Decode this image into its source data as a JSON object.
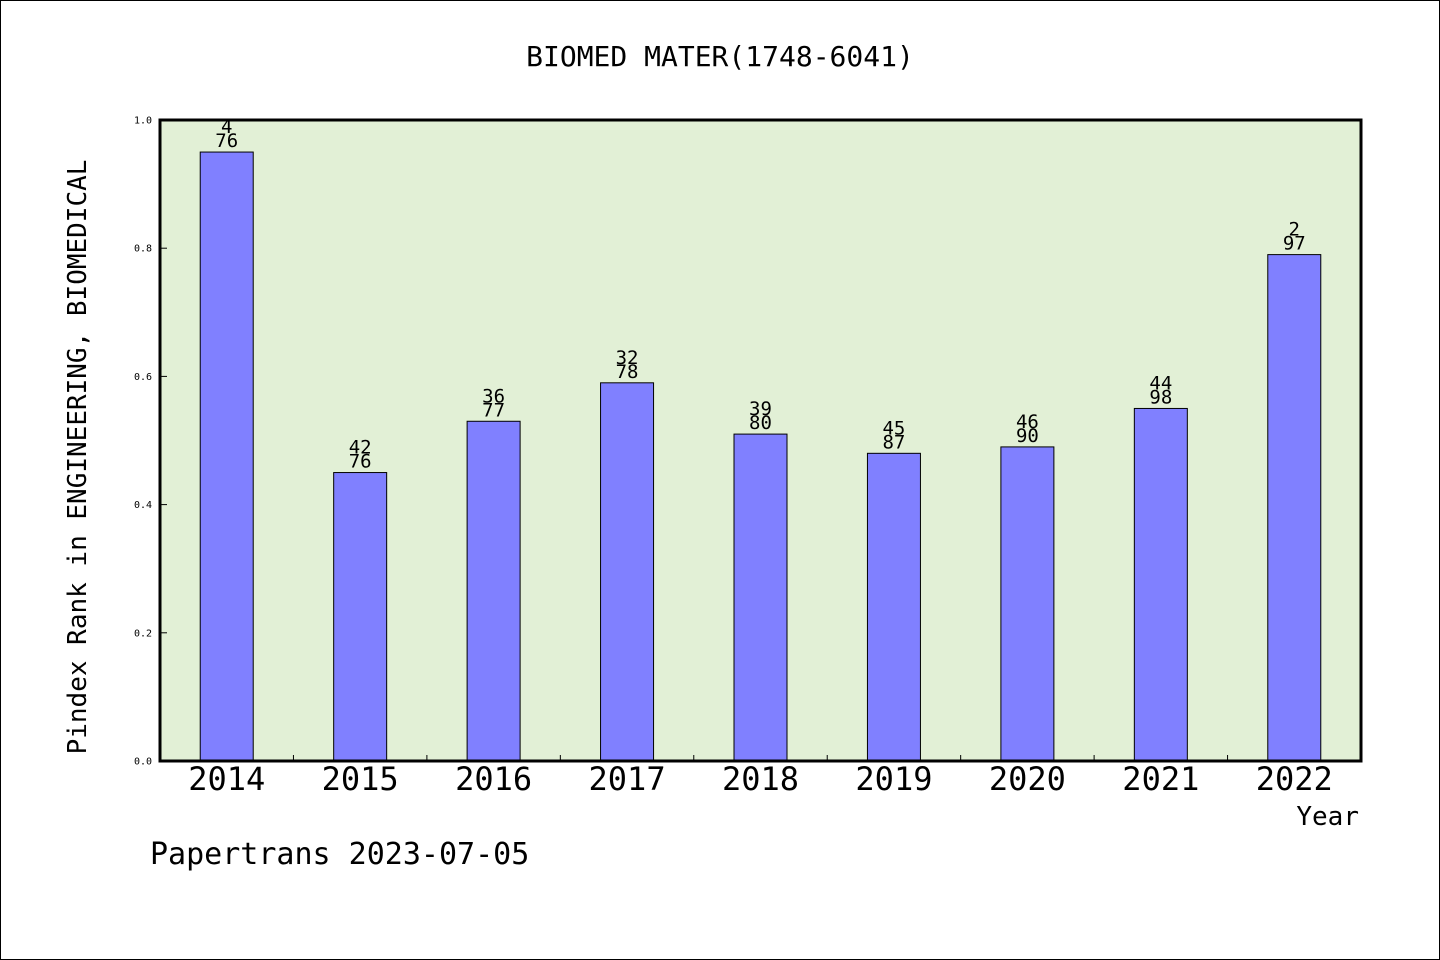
{
  "chart_data": {
    "type": "bar",
    "title": "BIOMED MATER(1748-6041)",
    "ylabel": "Pindex Rank in ENGINEERING, BIOMEDICAL",
    "xlabel": "Year",
    "ylim": [
      0,
      1.0
    ],
    "yticks": [
      "0.0",
      "0.2",
      "0.4",
      "0.6",
      "0.8",
      "1.0"
    ],
    "categories": [
      "2014",
      "2015",
      "2016",
      "2017",
      "2018",
      "2019",
      "2020",
      "2021",
      "2022"
    ],
    "values": [
      0.95,
      0.45,
      0.53,
      0.59,
      0.51,
      0.48,
      0.49,
      0.55,
      0.79
    ],
    "rank_labels": [
      "4",
      "42",
      "36",
      "32",
      "39",
      "45",
      "46",
      "44",
      "2"
    ],
    "total_labels": [
      "76",
      "76",
      "77",
      "78",
      "80",
      "87",
      "90",
      "98",
      "97"
    ],
    "grid": false,
    "plot_background": "#e2f0d6",
    "bar_color": "#8080ff"
  },
  "footer": "Papertrans 2023-07-05"
}
